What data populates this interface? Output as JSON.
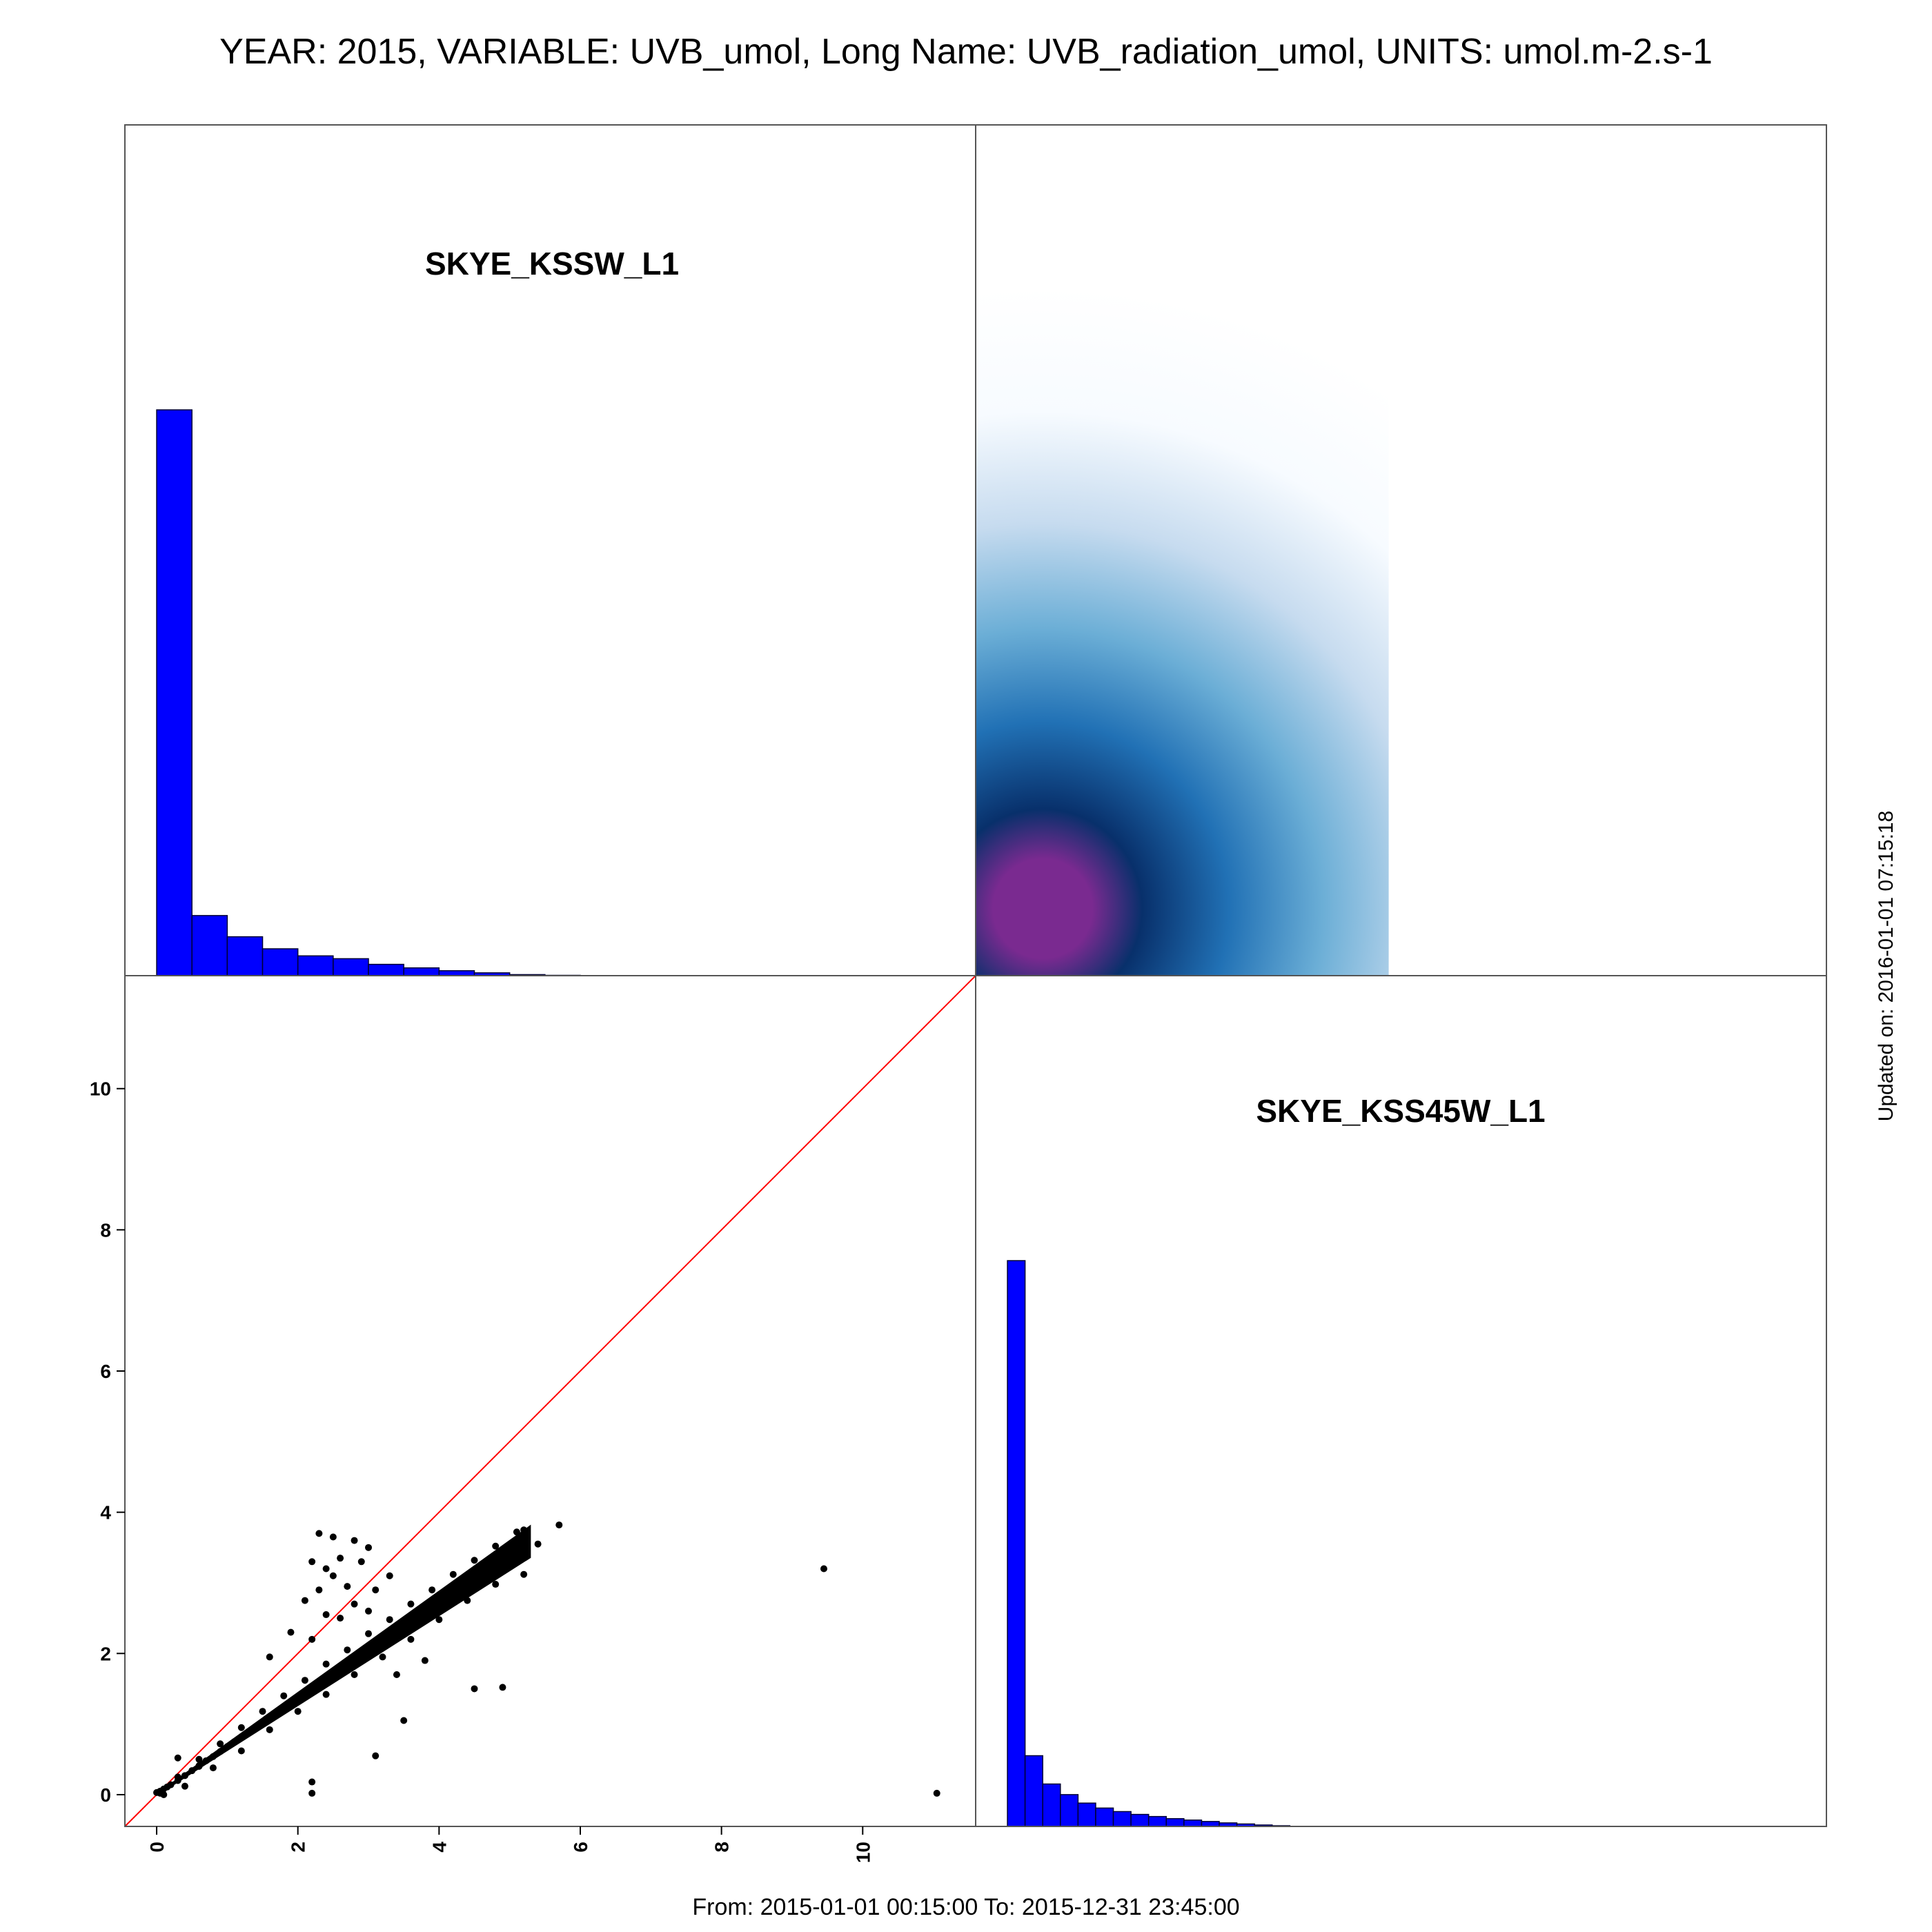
{
  "title": "YEAR: 2015, VARIABLE: UVB_umol, Long Name: UVB_radiation_umol, UNITS: umol.m-2.s-1",
  "footer": "From: 2015-01-01 00:15:00 To: 2015-12-31 23:45:00",
  "updated": "Updated on: 2016-01-01 07:15:18",
  "colors": {
    "hist_fill": "#0000ff",
    "hist_edge": "#000033",
    "identity_line": "#ff0000",
    "points": "#000000",
    "density_low": "#f7fbff",
    "density_mid": "#6baed6",
    "density_high": "#08306b",
    "density_peak": "#7a2a90",
    "frame": "#555555"
  },
  "chart_data": [
    {
      "type": "bar",
      "panel": "top-left",
      "label": "SKYE_KSSW_L1",
      "bin_width": 0.5,
      "bin_starts": [
        0,
        0.5,
        1.0,
        1.5,
        2.0,
        2.5,
        3.0,
        3.5,
        4.0,
        4.5,
        5.0,
        5.5
      ],
      "values": [
        800,
        85,
        55,
        38,
        28,
        24,
        16,
        11,
        7,
        4,
        1.5,
        0.5
      ],
      "xlim": [
        -0.45,
        11.6
      ]
    },
    {
      "type": "heatmap",
      "panel": "top-right",
      "description_kind": "2d-density",
      "peak": [
        0.5,
        0.5
      ],
      "xlim": [
        -0.45,
        11.6
      ],
      "ylim": [
        -0.45,
        11.6
      ],
      "data_extent": [
        -0.45,
        5.4
      ]
    },
    {
      "type": "scatter",
      "panel": "bottom-left",
      "xlim": [
        -0.45,
        11.6
      ],
      "ylim": [
        -0.45,
        11.6
      ],
      "xticks": [
        0,
        2,
        4,
        6,
        8,
        10
      ],
      "yticks": [
        0,
        2,
        4,
        6,
        8,
        10
      ],
      "identity_line": true,
      "main_trend_slope": 0.68,
      "main_trend_xmax": 5.3,
      "points": [
        [
          0.0,
          0.03
        ],
        [
          0.05,
          0.05
        ],
        [
          0.1,
          0.08
        ],
        [
          0.15,
          0.11
        ],
        [
          0.2,
          0.14
        ],
        [
          0.3,
          0.2
        ],
        [
          0.4,
          0.27
        ],
        [
          0.5,
          0.34
        ],
        [
          0.6,
          0.41
        ],
        [
          0.7,
          0.48
        ],
        [
          0.8,
          0.54
        ],
        [
          0.9,
          0.61
        ],
        [
          1.0,
          0.68
        ],
        [
          1.1,
          0.75
        ],
        [
          1.2,
          0.82
        ],
        [
          1.3,
          0.88
        ],
        [
          1.4,
          0.95
        ],
        [
          1.5,
          1.02
        ],
        [
          1.6,
          1.09
        ],
        [
          1.7,
          1.16
        ],
        [
          1.8,
          1.22
        ],
        [
          1.9,
          1.29
        ],
        [
          2.0,
          1.36
        ],
        [
          2.1,
          1.43
        ],
        [
          2.2,
          1.5
        ],
        [
          2.3,
          1.56
        ],
        [
          2.4,
          1.63
        ],
        [
          2.5,
          1.7
        ],
        [
          2.6,
          1.77
        ],
        [
          2.7,
          1.84
        ],
        [
          2.8,
          1.9
        ],
        [
          2.9,
          1.97
        ],
        [
          3.0,
          2.04
        ],
        [
          3.1,
          2.11
        ],
        [
          3.2,
          2.18
        ],
        [
          3.3,
          2.24
        ],
        [
          3.4,
          2.31
        ],
        [
          3.5,
          2.38
        ],
        [
          3.6,
          2.45
        ],
        [
          3.7,
          2.52
        ],
        [
          3.8,
          2.58
        ],
        [
          3.9,
          2.65
        ],
        [
          4.0,
          2.72
        ],
        [
          4.1,
          2.79
        ],
        [
          4.2,
          2.86
        ],
        [
          4.3,
          2.92
        ],
        [
          4.4,
          2.99
        ],
        [
          4.5,
          3.06
        ],
        [
          4.6,
          3.13
        ],
        [
          4.7,
          3.2
        ],
        [
          4.8,
          3.26
        ],
        [
          4.9,
          3.33
        ],
        [
          5.0,
          3.4
        ],
        [
          5.1,
          3.47
        ],
        [
          5.2,
          3.54
        ],
        [
          0.3,
          0.25
        ],
        [
          0.6,
          0.5
        ],
        [
          0.9,
          0.72
        ],
        [
          1.2,
          0.95
        ],
        [
          1.5,
          1.18
        ],
        [
          1.8,
          1.4
        ],
        [
          2.1,
          1.62
        ],
        [
          2.4,
          1.85
        ],
        [
          2.7,
          2.05
        ],
        [
          3.0,
          2.28
        ],
        [
          3.3,
          2.48
        ],
        [
          3.6,
          2.7
        ],
        [
          3.9,
          2.9
        ],
        [
          4.2,
          3.12
        ],
        [
          4.5,
          3.32
        ],
        [
          4.8,
          3.52
        ],
        [
          5.1,
          3.72
        ],
        [
          5.2,
          3.75
        ],
        [
          5.7,
          3.82
        ],
        [
          5.4,
          3.55
        ],
        [
          5.0,
          3.3
        ],
        [
          4.6,
          3.1
        ],
        [
          0.4,
          0.12
        ],
        [
          0.8,
          0.38
        ],
        [
          1.2,
          0.62
        ],
        [
          1.6,
          0.92
        ],
        [
          2.0,
          1.18
        ],
        [
          2.4,
          1.42
        ],
        [
          2.8,
          1.7
        ],
        [
          3.2,
          1.95
        ],
        [
          3.6,
          2.2
        ],
        [
          4.0,
          2.48
        ],
        [
          4.4,
          2.75
        ],
        [
          4.8,
          2.98
        ],
        [
          5.2,
          3.12
        ],
        [
          2.3,
          3.7
        ],
        [
          2.5,
          3.65
        ],
        [
          2.8,
          3.6
        ],
        [
          3.0,
          3.5
        ],
        [
          2.2,
          3.3
        ],
        [
          2.6,
          3.35
        ],
        [
          2.4,
          3.2
        ],
        [
          2.9,
          3.3
        ],
        [
          2.3,
          2.9
        ],
        [
          2.7,
          2.95
        ],
        [
          2.5,
          3.1
        ],
        [
          2.1,
          2.75
        ],
        [
          2.4,
          2.55
        ],
        [
          2.8,
          2.7
        ],
        [
          3.1,
          2.9
        ],
        [
          3.3,
          3.1
        ],
        [
          1.9,
          2.3
        ],
        [
          2.2,
          2.2
        ],
        [
          1.6,
          1.95
        ],
        [
          2.6,
          2.5
        ],
        [
          3.0,
          2.6
        ],
        [
          3.4,
          1.7
        ],
        [
          3.5,
          1.05
        ],
        [
          3.1,
          0.55
        ],
        [
          2.2,
          0.18
        ],
        [
          2.2,
          0.02
        ],
        [
          4.5,
          1.5
        ],
        [
          4.9,
          1.52
        ],
        [
          3.8,
          1.9
        ],
        [
          0.3,
          0.52
        ],
        [
          0.6,
          0.4
        ],
        [
          0.05,
          0.02
        ],
        [
          0.1,
          0.0
        ],
        [
          9.45,
          3.2
        ],
        [
          11.05,
          0.02
        ]
      ]
    },
    {
      "type": "bar",
      "panel": "bottom-right",
      "label": "SKYE_KSS45W_L1",
      "bin_width": 0.25,
      "bin_starts": [
        0,
        0.25,
        0.5,
        0.75,
        1.0,
        1.25,
        1.5,
        1.75,
        2.0,
        2.25,
        2.5,
        2.75,
        3.0,
        3.25,
        3.5,
        3.75
      ],
      "values": [
        800,
        100,
        60,
        45,
        33,
        26,
        21,
        17,
        14,
        11,
        9,
        7,
        5,
        3.5,
        2,
        1
      ],
      "xlim": [
        -0.45,
        11.6
      ]
    }
  ]
}
